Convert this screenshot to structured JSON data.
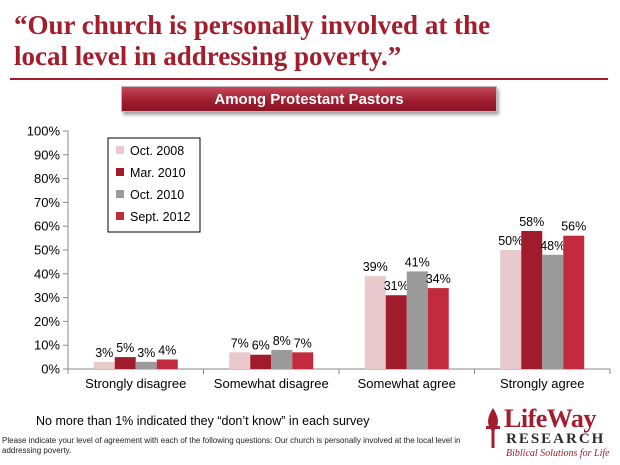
{
  "title": "“Our church is personally involved at the\nlocal level in addressing poverty.”",
  "banner": "Among Protestant Pastors",
  "footnote": "No more than 1% indicated they “don’t know” in each survey",
  "question": "Please indicate your level of agreement with each of the following questions: Our church is personally involved at the local level in addressing poverty.",
  "logo": {
    "name": "LifeWay",
    "sub": "RESEARCH",
    "tagline": "Biblical Solutions for Life",
    "icon": "cross-logo-icon"
  },
  "colors": {
    "accent": "#a31d2d",
    "Oct. 2008": "#e8c9cc",
    "Mar. 2010": "#a01b2c",
    "Oct. 2010": "#9b9b9b",
    "Sept. 2012": "#c42a3d"
  },
  "chart_data": {
    "type": "bar",
    "categories": [
      "Strongly disagree",
      "Somewhat disagree",
      "Somewhat agree",
      "Strongly agree"
    ],
    "series": [
      {
        "name": "Oct. 2008",
        "values": [
          3,
          7,
          39,
          50
        ]
      },
      {
        "name": "Mar. 2010",
        "values": [
          5,
          6,
          31,
          58
        ]
      },
      {
        "name": "Oct. 2010",
        "values": [
          3,
          8,
          41,
          48
        ]
      },
      {
        "name": "Sept. 2012",
        "values": [
          4,
          7,
          34,
          56
        ]
      }
    ],
    "ylim": [
      0,
      100
    ],
    "yticks": [
      "0%",
      "10%",
      "20%",
      "30%",
      "40%",
      "50%",
      "60%",
      "70%",
      "80%",
      "90%",
      "100%"
    ],
    "value_suffix": "%",
    "legend_position": "top-left",
    "grid": false
  }
}
